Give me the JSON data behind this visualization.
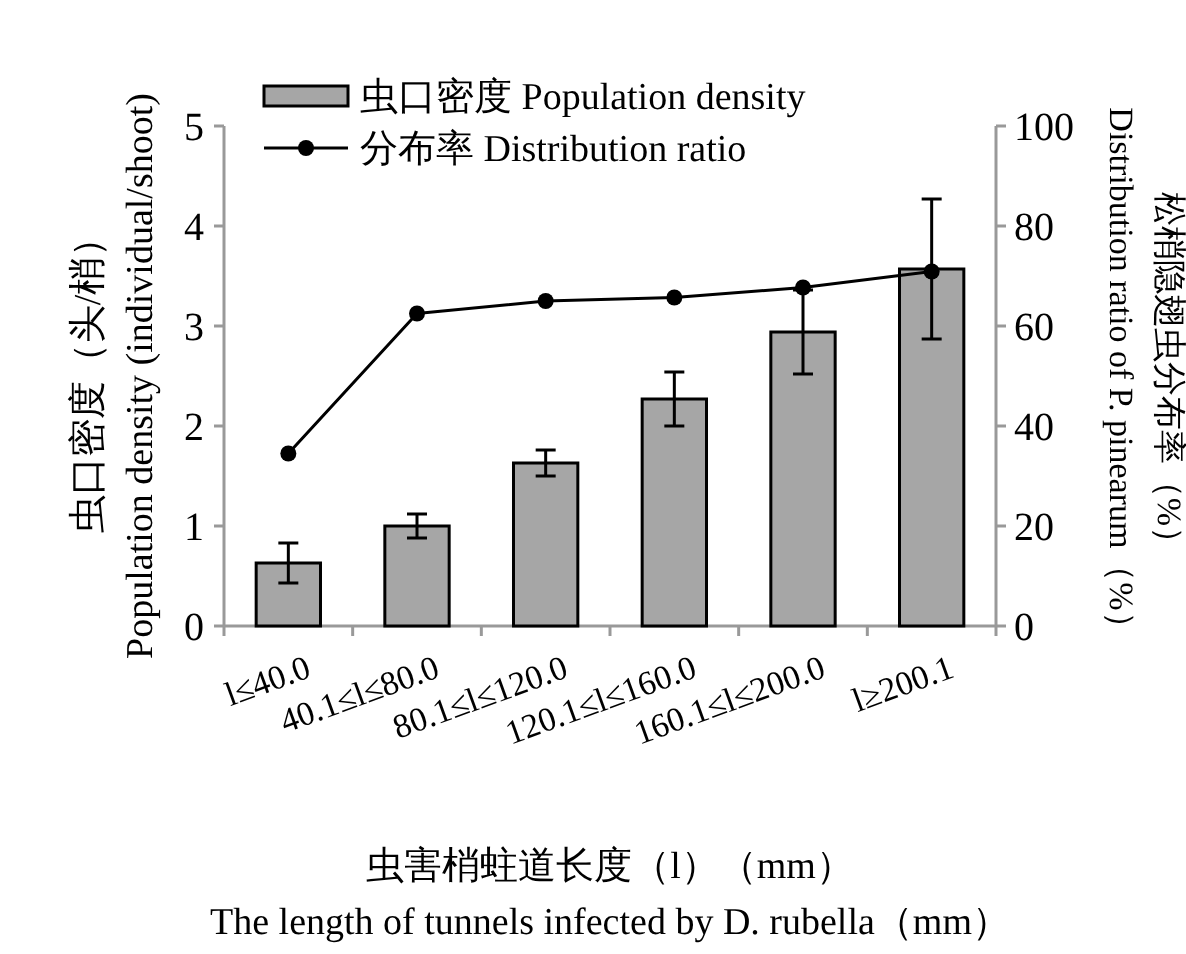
{
  "chart_data": {
    "type": "bar",
    "categories": [
      "l≤40.0",
      "40.1≤l≤80.0",
      "80.1≤l≤120.0",
      "120.1≤l≤160.0",
      "160.1≤l≤200.0",
      "l≥200.1"
    ],
    "series": [
      {
        "name": "虫口密度 Population density",
        "color": "#a6a6a6",
        "values": [
          0.63,
          1.0,
          1.63,
          2.27,
          2.94,
          3.57
        ],
        "errors": [
          0.2,
          0.12,
          0.13,
          0.27,
          0.42,
          0.7
        ]
      },
      {
        "name": "分布率 Distribution ratio",
        "type": "line",
        "axis": "y2",
        "color": "#000000",
        "values": [
          34.5,
          62.5,
          65,
          65.7,
          67.7,
          70.9
        ]
      }
    ],
    "ylim": [
      0,
      5
    ],
    "yticks": [
      0,
      1,
      2,
      3,
      4,
      5
    ],
    "y2lim": [
      0,
      100
    ],
    "y2ticks": [
      0,
      20,
      40,
      60,
      80,
      100
    ],
    "xlabel": "虫害梢蛀道长度（l）（mm）\nThe length of tunnels infected by D. rubella（mm）",
    "ylabel": "虫口密度（头/梢）\nPopulation density (individual/shoot)",
    "y2label": "松梢隐翅虫分布率（%）\nDistribution ratio of P. pinearum（%）",
    "legend": "top left",
    "marker": "circle",
    "grid": false
  }
}
